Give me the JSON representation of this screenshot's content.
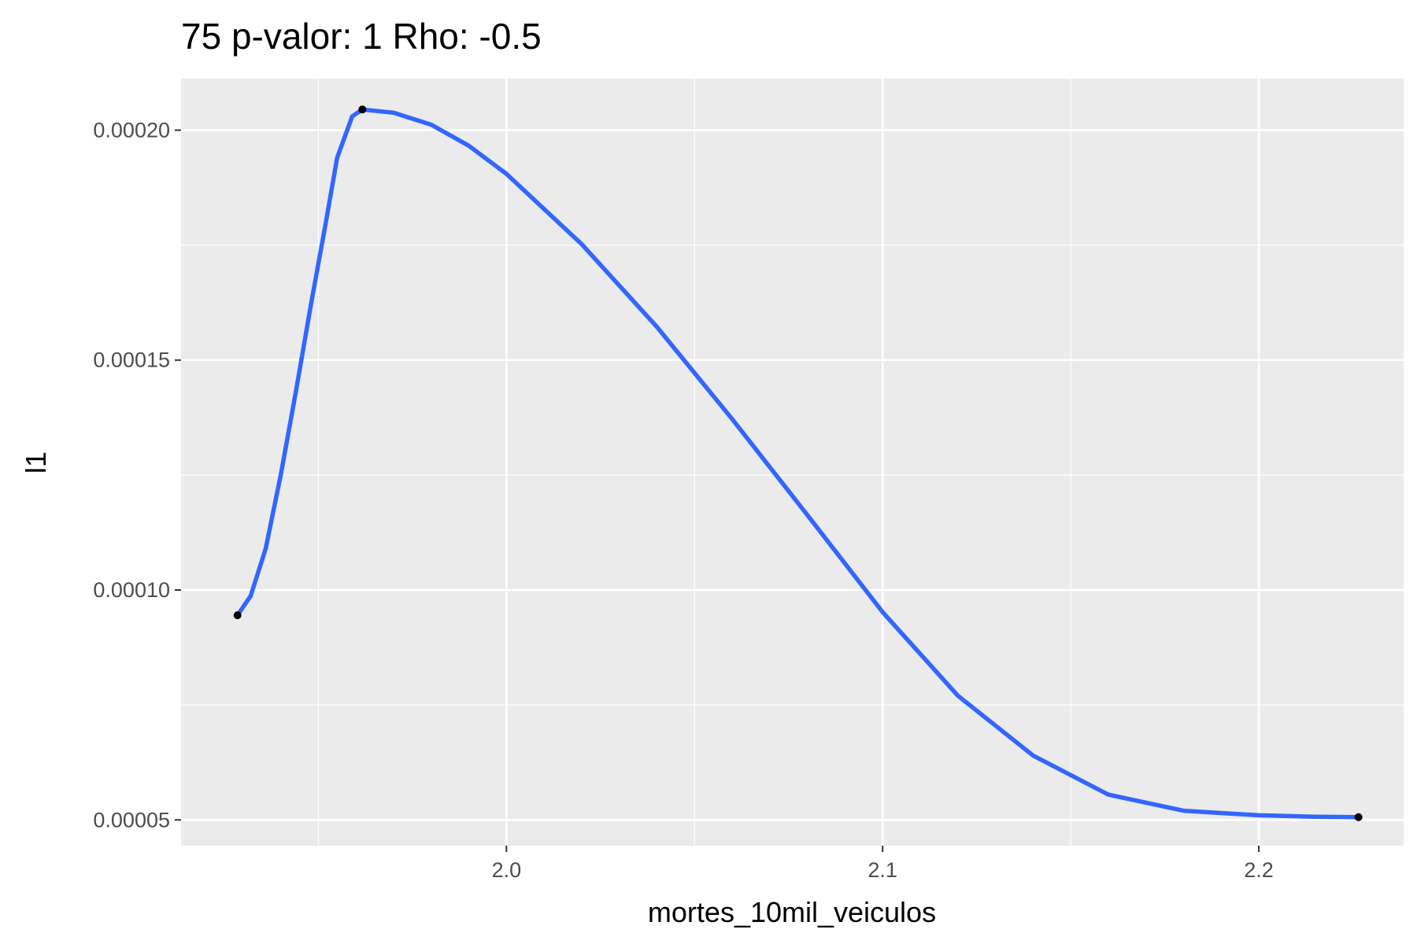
{
  "chart_data": {
    "type": "line",
    "title": "75 p-valor: 1 Rho: -0.5",
    "xlabel": "mortes_10mil_veiculos",
    "ylabel": "l1",
    "xlim": [
      1.9135,
      2.2385
    ],
    "ylim": [
      4.44e-05,
      0.0002112
    ],
    "x_ticks": [
      {
        "value": 2.0,
        "label": "2.0"
      },
      {
        "value": 2.1,
        "label": "2.1"
      },
      {
        "value": 2.2,
        "label": "2.2"
      }
    ],
    "x_minor": [
      1.95,
      2.05,
      2.15
    ],
    "y_ticks": [
      {
        "value": 5e-05,
        "label": "0.00005"
      },
      {
        "value": 0.0001,
        "label": "0.00010"
      },
      {
        "value": 0.00015,
        "label": "0.00015"
      },
      {
        "value": 0.0002,
        "label": "0.00020"
      }
    ],
    "y_minor": [
      7.5e-05,
      0.000125,
      0.000175
    ],
    "grid": true,
    "points": [
      {
        "x": 1.9285,
        "y": 9.45e-05
      },
      {
        "x": 1.9617,
        "y": 0.0002045
      },
      {
        "x": 2.2265,
        "y": 5.06e-05
      }
    ],
    "series": [
      {
        "x": [
          1.9285,
          1.932,
          1.936,
          1.94,
          1.944,
          1.948,
          1.952,
          1.955,
          1.959,
          1.9617,
          1.97,
          1.98,
          1.99,
          2.0,
          2.02,
          2.04,
          2.06,
          2.08,
          2.1,
          2.12,
          2.14,
          2.16,
          2.18,
          2.2,
          2.215,
          2.2265
        ],
        "y": [
          9.45e-05,
          9.87e-05,
          0.000109,
          0.000125,
          0.000143,
          0.000162,
          0.00018,
          0.000194,
          0.000203,
          0.0002045,
          0.0002038,
          0.0002012,
          0.0001966,
          0.0001905,
          0.0001752,
          0.0001572,
          0.0001372,
          0.0001163,
          9.52e-05,
          7.7e-05,
          6.4e-05,
          5.55e-05,
          5.2e-05,
          5.1e-05,
          5.07e-05,
          5.06e-05
        ]
      }
    ],
    "colors": {
      "panel": "#ebebeb",
      "grid": "#ffffff",
      "line": "#3366ff",
      "point": "#000000"
    }
  }
}
